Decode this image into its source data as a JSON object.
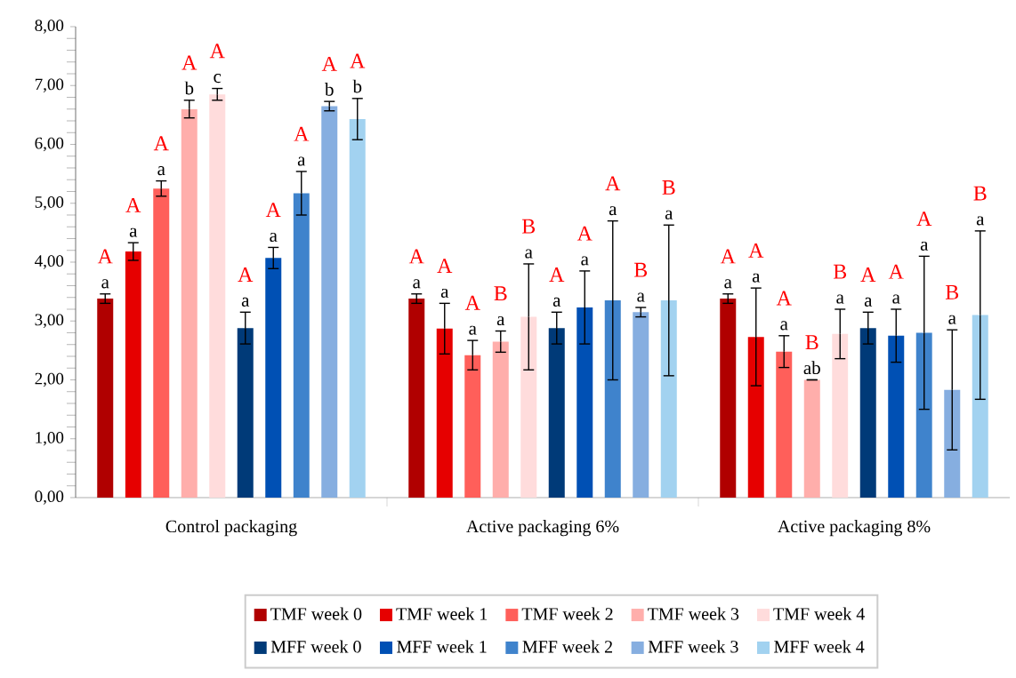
{
  "chart_data": {
    "type": "bar",
    "categories": [
      "Control packaging",
      "Active packaging 6%",
      "Active packaging 8%"
    ],
    "ylim": [
      0,
      8
    ],
    "yticks": [
      {
        "value": 0,
        "label": "0,00"
      },
      {
        "value": 1,
        "label": "1,00"
      },
      {
        "value": 2,
        "label": "2,00"
      },
      {
        "value": 3,
        "label": "3,00"
      },
      {
        "value": 4,
        "label": "4,00"
      },
      {
        "value": 5,
        "label": "5,00"
      },
      {
        "value": 6,
        "label": "6,00"
      },
      {
        "value": 7,
        "label": "7,00"
      },
      {
        "value": 8,
        "label": "8,00"
      }
    ],
    "legend": "bottom",
    "series": [
      {
        "name": "TMF week 0",
        "color": "#b00000",
        "values": [
          3.38,
          3.38,
          3.38
        ],
        "errors": [
          0.08,
          0.08,
          0.08
        ]
      },
      {
        "name": "TMF week 1",
        "color": "#e60000",
        "values": [
          4.18,
          2.87,
          2.73
        ],
        "errors": [
          0.15,
          0.43,
          0.83
        ]
      },
      {
        "name": "TMF week 2",
        "color": "#ff5f5a",
        "values": [
          5.25,
          2.42,
          2.48
        ],
        "errors": [
          0.13,
          0.25,
          0.27
        ]
      },
      {
        "name": "TMF week 3",
        "color": "#ffaeab",
        "values": [
          6.6,
          2.65,
          2.0
        ],
        "errors": [
          0.15,
          0.18,
          0
        ]
      },
      {
        "name": "TMF week 4",
        "color": "#ffdcdc",
        "values": [
          6.85,
          3.07,
          2.78
        ],
        "errors": [
          0.1,
          0.9,
          0.42
        ]
      },
      {
        "name": "MFF week 0",
        "color": "#003a78",
        "values": [
          2.88,
          2.88,
          2.88
        ],
        "errors": [
          0.27,
          0.27,
          0.27
        ]
      },
      {
        "name": "MFF week 1",
        "color": "#0050b4",
        "values": [
          4.07,
          3.23,
          2.75
        ],
        "errors": [
          0.18,
          0.62,
          0.45
        ]
      },
      {
        "name": "MFF week 2",
        "color": "#3f83cc",
        "values": [
          5.17,
          3.35,
          2.8
        ],
        "errors": [
          0.37,
          1.35,
          1.3
        ]
      },
      {
        "name": "MFF week 3",
        "color": "#86aee0",
        "values": [
          6.65,
          3.15,
          1.83
        ],
        "errors": [
          0.08,
          0.08,
          1.02
        ]
      },
      {
        "name": "MFF week 4",
        "color": "#a2d2f0",
        "values": [
          6.43,
          3.35,
          3.1
        ],
        "errors": [
          0.35,
          1.28,
          1.43
        ]
      }
    ],
    "annotations": [
      "a",
      "A",
      "a",
      "A",
      "a",
      "A",
      "b",
      "A",
      "c",
      "A",
      "a",
      "A",
      "a",
      "A",
      "a",
      "A",
      "b",
      "A",
      "b",
      "A",
      "a",
      "A",
      "a",
      "A",
      "a",
      "A",
      "a",
      "B",
      "a",
      "B",
      "a",
      "A",
      "a",
      "A",
      "a",
      "A",
      "a",
      "B",
      "a",
      "B",
      "a",
      "A",
      "a",
      "A",
      "a",
      "A",
      "ab",
      "B",
      "a",
      "B",
      "a",
      "A",
      "a",
      "A",
      "a",
      "A",
      "a",
      "B",
      "a",
      "B"
    ]
  }
}
